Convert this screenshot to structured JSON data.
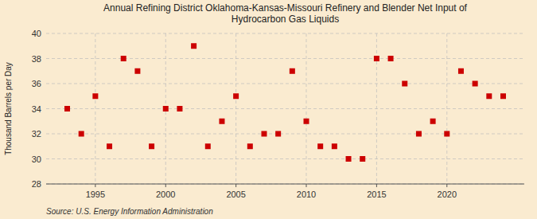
{
  "chart_data": {
    "type": "scatter",
    "title": "Annual Refining District Oklahoma-Kansas-Missouri Refinery and Blender Net Input of\nHydrocarbon Gas Liquids",
    "ylabel": "Thousand Barrels per Day",
    "source": "Source: U.S. Energy Information Administration",
    "x": [
      1993,
      1994,
      1995,
      1996,
      1997,
      1998,
      1999,
      2000,
      2001,
      2002,
      2003,
      2004,
      2005,
      2006,
      2007,
      2008,
      2009,
      2010,
      2011,
      2012,
      2013,
      2014,
      2015,
      2016,
      2017,
      2018,
      2019,
      2020,
      2021,
      2022,
      2023,
      2024
    ],
    "values": [
      34,
      32,
      35,
      31,
      38,
      37,
      31,
      34,
      34,
      39,
      31,
      33,
      35,
      31,
      32,
      32,
      37,
      33,
      31,
      31,
      30,
      30,
      38,
      38,
      36,
      32,
      33,
      32,
      37,
      36,
      35,
      35
    ],
    "xlim": [
      1991.5,
      2025.5
    ],
    "ylim": [
      28,
      40
    ],
    "xticks": [
      1995,
      2000,
      2005,
      2010,
      2015,
      2020
    ],
    "yticks": [
      28,
      30,
      32,
      34,
      36,
      38,
      40
    ],
    "color": "#cc0000",
    "marker": "square",
    "grid": true
  }
}
